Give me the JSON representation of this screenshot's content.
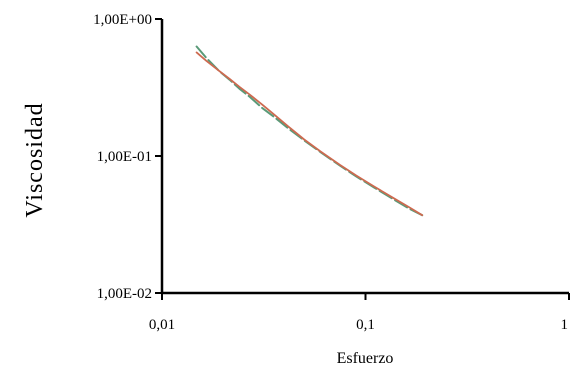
{
  "chart_data": {
    "type": "line",
    "title": "",
    "xlabel": "Esfuerzo",
    "ylabel": "Viscosidad",
    "x_scale": "log",
    "y_scale": "log",
    "xlim": [
      0.01,
      1
    ],
    "ylim": [
      0.01,
      1
    ],
    "x_ticks": [
      {
        "value": 0.01,
        "label": "0,01"
      },
      {
        "value": 0.1,
        "label": "0,1"
      },
      {
        "value": 1,
        "label": "1"
      }
    ],
    "y_ticks": [
      {
        "value": 1,
        "label": "1,00E+00"
      },
      {
        "value": 0.1,
        "label": "1,00E-01"
      },
      {
        "value": 0.01,
        "label": "1,00E-02"
      }
    ],
    "grid": false,
    "legend": "none",
    "series": [
      {
        "color": "#5a9a78",
        "style": "dashed",
        "x": [
          0.0148,
          0.0165,
          0.019,
          0.0215,
          0.024,
          0.027,
          0.031,
          0.036,
          0.042,
          0.05,
          0.06,
          0.075,
          0.09,
          0.11,
          0.135,
          0.165,
          0.19
        ],
        "y": [
          0.63,
          0.52,
          0.42,
          0.36,
          0.31,
          0.27,
          0.225,
          0.19,
          0.158,
          0.13,
          0.107,
          0.085,
          0.071,
          0.059,
          0.049,
          0.041,
          0.037
        ]
      },
      {
        "color": "#cd6a50",
        "style": "solid",
        "x": [
          0.0148,
          0.0165,
          0.019,
          0.0215,
          0.024,
          0.027,
          0.031,
          0.036,
          0.042,
          0.05,
          0.06,
          0.075,
          0.09,
          0.11,
          0.135,
          0.165,
          0.19
        ],
        "y": [
          0.57,
          0.495,
          0.42,
          0.365,
          0.32,
          0.28,
          0.238,
          0.198,
          0.163,
          0.132,
          0.108,
          0.086,
          0.072,
          0.06,
          0.05,
          0.042,
          0.037
        ]
      }
    ]
  }
}
